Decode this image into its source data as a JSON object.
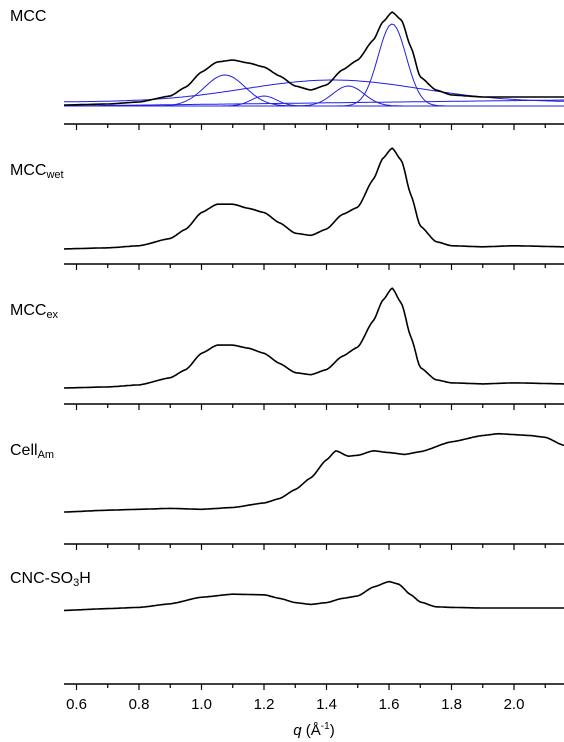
{
  "chart_data": {
    "type": "line",
    "xlabel_var": "q",
    "xlabel_unit": "(Å",
    "xlabel_exp": "-1",
    "xlabel_close": ")",
    "xlim": [
      0.56,
      2.16
    ],
    "xticks": [
      0.6,
      0.8,
      1.0,
      1.2,
      1.4,
      1.6,
      1.8,
      2.0
    ],
    "xtick_labels": [
      "0.6",
      "0.8",
      "1.0",
      "1.2",
      "1.4",
      "1.6",
      "1.8",
      "2.0"
    ],
    "grid": false,
    "panels": [
      {
        "label_main": "MCC",
        "label_sub": "",
        "ylim": [
          0,
          1
        ],
        "series": [
          {
            "color": "#000000",
            "points": [
              [
                0.56,
                0.07
              ],
              [
                0.7,
                0.08
              ],
              [
                0.8,
                0.1
              ],
              [
                0.9,
                0.16
              ],
              [
                0.95,
                0.25
              ],
              [
                1.0,
                0.4
              ],
              [
                1.05,
                0.5
              ],
              [
                1.1,
                0.52
              ],
              [
                1.15,
                0.49
              ],
              [
                1.2,
                0.45
              ],
              [
                1.25,
                0.36
              ],
              [
                1.3,
                0.26
              ],
              [
                1.35,
                0.22
              ],
              [
                1.4,
                0.27
              ],
              [
                1.45,
                0.42
              ],
              [
                1.5,
                0.52
              ],
              [
                1.55,
                0.72
              ],
              [
                1.58,
                0.9
              ],
              [
                1.61,
                1.0
              ],
              [
                1.64,
                0.92
              ],
              [
                1.67,
                0.65
              ],
              [
                1.7,
                0.35
              ],
              [
                1.75,
                0.22
              ],
              [
                1.8,
                0.17
              ],
              [
                1.9,
                0.15
              ],
              [
                2.0,
                0.15
              ],
              [
                2.16,
                0.15
              ]
            ]
          }
        ],
        "components": [
          {
            "color": "#2020e0",
            "type": "gauss",
            "center": 1.075,
            "height": 0.31,
            "width": 0.065
          },
          {
            "color": "#2020e0",
            "type": "gauss",
            "center": 1.2,
            "height": 0.1,
            "width": 0.04
          },
          {
            "color": "#2020e0",
            "type": "gauss",
            "center": 1.47,
            "height": 0.2,
            "width": 0.05
          },
          {
            "color": "#2020e0",
            "type": "gauss",
            "center": 1.61,
            "height": 0.82,
            "width": 0.045
          },
          {
            "color": "#2020e0",
            "type": "gauss",
            "center": 1.42,
            "height": 0.22,
            "width": 0.28,
            "offset": 0.04
          },
          {
            "color": "#2020e0",
            "type": "linear",
            "y0": 0.06,
            "y1": 0.12
          }
        ]
      },
      {
        "label_main": "MCC",
        "label_sub": "wet",
        "ylim": [
          0,
          1
        ],
        "series": [
          {
            "color": "#000000",
            "points": [
              [
                0.56,
                0.03
              ],
              [
                0.7,
                0.04
              ],
              [
                0.8,
                0.06
              ],
              [
                0.9,
                0.13
              ],
              [
                0.95,
                0.22
              ],
              [
                1.0,
                0.38
              ],
              [
                1.05,
                0.46
              ],
              [
                1.1,
                0.46
              ],
              [
                1.15,
                0.42
              ],
              [
                1.2,
                0.38
              ],
              [
                1.25,
                0.28
              ],
              [
                1.3,
                0.18
              ],
              [
                1.35,
                0.16
              ],
              [
                1.4,
                0.22
              ],
              [
                1.45,
                0.36
              ],
              [
                1.5,
                0.43
              ],
              [
                1.55,
                0.7
              ],
              [
                1.58,
                0.9
              ],
              [
                1.61,
                1.0
              ],
              [
                1.64,
                0.88
              ],
              [
                1.67,
                0.55
              ],
              [
                1.7,
                0.25
              ],
              [
                1.75,
                0.1
              ],
              [
                1.8,
                0.06
              ],
              [
                1.9,
                0.05
              ],
              [
                2.0,
                0.06
              ],
              [
                2.16,
                0.05
              ]
            ]
          }
        ]
      },
      {
        "label_main": "MCC",
        "label_sub": "ex",
        "ylim": [
          0,
          1
        ],
        "series": [
          {
            "color": "#000000",
            "points": [
              [
                0.56,
                0.02
              ],
              [
                0.7,
                0.03
              ],
              [
                0.8,
                0.05
              ],
              [
                0.9,
                0.12
              ],
              [
                0.95,
                0.2
              ],
              [
                1.0,
                0.36
              ],
              [
                1.05,
                0.44
              ],
              [
                1.1,
                0.44
              ],
              [
                1.15,
                0.41
              ],
              [
                1.2,
                0.36
              ],
              [
                1.25,
                0.26
              ],
              [
                1.3,
                0.17
              ],
              [
                1.35,
                0.15
              ],
              [
                1.4,
                0.2
              ],
              [
                1.45,
                0.33
              ],
              [
                1.5,
                0.42
              ],
              [
                1.55,
                0.68
              ],
              [
                1.58,
                0.88
              ],
              [
                1.61,
                1.0
              ],
              [
                1.64,
                0.85
              ],
              [
                1.67,
                0.52
              ],
              [
                1.7,
                0.22
              ],
              [
                1.75,
                0.1
              ],
              [
                1.8,
                0.07
              ],
              [
                1.9,
                0.06
              ],
              [
                2.0,
                0.07
              ],
              [
                2.16,
                0.06
              ]
            ]
          }
        ]
      },
      {
        "label_main": "Cell",
        "label_sub": "Am",
        "ylim": [
          0,
          1
        ],
        "series": [
          {
            "color": "#000000",
            "points": [
              [
                0.56,
                0.0
              ],
              [
                0.7,
                0.02
              ],
              [
                0.8,
                0.03
              ],
              [
                0.9,
                0.04
              ],
              [
                1.0,
                0.03
              ],
              [
                1.1,
                0.05
              ],
              [
                1.2,
                0.1
              ],
              [
                1.25,
                0.15
              ],
              [
                1.3,
                0.25
              ],
              [
                1.35,
                0.38
              ],
              [
                1.4,
                0.58
              ],
              [
                1.43,
                0.68
              ],
              [
                1.47,
                0.62
              ],
              [
                1.5,
                0.63
              ],
              [
                1.55,
                0.68
              ],
              [
                1.6,
                0.66
              ],
              [
                1.65,
                0.64
              ],
              [
                1.7,
                0.67
              ],
              [
                1.8,
                0.78
              ],
              [
                1.9,
                0.85
              ],
              [
                1.95,
                0.87
              ],
              [
                2.0,
                0.86
              ],
              [
                2.05,
                0.85
              ],
              [
                2.1,
                0.83
              ],
              [
                2.16,
                0.74
              ]
            ]
          }
        ]
      },
      {
        "label_main": "CNC-SO",
        "label_sub": "3",
        "label_tail": "H",
        "ylim": [
          0,
          1
        ],
        "series": [
          {
            "color": "#000000",
            "points": [
              [
                0.56,
                0.16
              ],
              [
                0.7,
                0.19
              ],
              [
                0.8,
                0.21
              ],
              [
                0.9,
                0.27
              ],
              [
                1.0,
                0.38
              ],
              [
                1.1,
                0.43
              ],
              [
                1.2,
                0.42
              ],
              [
                1.25,
                0.36
              ],
              [
                1.3,
                0.29
              ],
              [
                1.35,
                0.26
              ],
              [
                1.4,
                0.29
              ],
              [
                1.45,
                0.36
              ],
              [
                1.5,
                0.4
              ],
              [
                1.55,
                0.55
              ],
              [
                1.6,
                0.64
              ],
              [
                1.63,
                0.6
              ],
              [
                1.67,
                0.42
              ],
              [
                1.7,
                0.3
              ],
              [
                1.75,
                0.22
              ],
              [
                1.8,
                0.21
              ],
              [
                1.9,
                0.2
              ],
              [
                2.0,
                0.2
              ],
              [
                2.16,
                0.2
              ]
            ]
          }
        ]
      }
    ]
  }
}
